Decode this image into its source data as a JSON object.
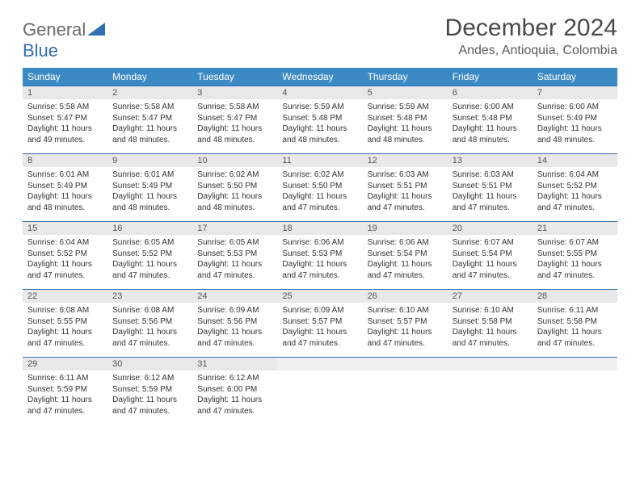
{
  "logo": {
    "word1": "General",
    "word2": "Blue"
  },
  "header": {
    "title": "December 2024",
    "location": "Andes, Antioquia, Colombia"
  },
  "colors": {
    "header_bg": "#3b8ac4",
    "header_text": "#ffffff",
    "row_border": "#2f6fb3",
    "daynum_bg": "#e8e8e8",
    "logo_gray": "#6a6a6a",
    "logo_blue": "#2f6fb3"
  },
  "daynames": [
    "Sunday",
    "Monday",
    "Tuesday",
    "Wednesday",
    "Thursday",
    "Friday",
    "Saturday"
  ],
  "weeks": [
    [
      {
        "n": "1",
        "sr": "5:58 AM",
        "ss": "5:47 PM",
        "dl": "11 hours and 49 minutes."
      },
      {
        "n": "2",
        "sr": "5:58 AM",
        "ss": "5:47 PM",
        "dl": "11 hours and 48 minutes."
      },
      {
        "n": "3",
        "sr": "5:58 AM",
        "ss": "5:47 PM",
        "dl": "11 hours and 48 minutes."
      },
      {
        "n": "4",
        "sr": "5:59 AM",
        "ss": "5:48 PM",
        "dl": "11 hours and 48 minutes."
      },
      {
        "n": "5",
        "sr": "5:59 AM",
        "ss": "5:48 PM",
        "dl": "11 hours and 48 minutes."
      },
      {
        "n": "6",
        "sr": "6:00 AM",
        "ss": "5:48 PM",
        "dl": "11 hours and 48 minutes."
      },
      {
        "n": "7",
        "sr": "6:00 AM",
        "ss": "5:49 PM",
        "dl": "11 hours and 48 minutes."
      }
    ],
    [
      {
        "n": "8",
        "sr": "6:01 AM",
        "ss": "5:49 PM",
        "dl": "11 hours and 48 minutes."
      },
      {
        "n": "9",
        "sr": "6:01 AM",
        "ss": "5:49 PM",
        "dl": "11 hours and 48 minutes."
      },
      {
        "n": "10",
        "sr": "6:02 AM",
        "ss": "5:50 PM",
        "dl": "11 hours and 48 minutes."
      },
      {
        "n": "11",
        "sr": "6:02 AM",
        "ss": "5:50 PM",
        "dl": "11 hours and 47 minutes."
      },
      {
        "n": "12",
        "sr": "6:03 AM",
        "ss": "5:51 PM",
        "dl": "11 hours and 47 minutes."
      },
      {
        "n": "13",
        "sr": "6:03 AM",
        "ss": "5:51 PM",
        "dl": "11 hours and 47 minutes."
      },
      {
        "n": "14",
        "sr": "6:04 AM",
        "ss": "5:52 PM",
        "dl": "11 hours and 47 minutes."
      }
    ],
    [
      {
        "n": "15",
        "sr": "6:04 AM",
        "ss": "5:52 PM",
        "dl": "11 hours and 47 minutes."
      },
      {
        "n": "16",
        "sr": "6:05 AM",
        "ss": "5:52 PM",
        "dl": "11 hours and 47 minutes."
      },
      {
        "n": "17",
        "sr": "6:05 AM",
        "ss": "5:53 PM",
        "dl": "11 hours and 47 minutes."
      },
      {
        "n": "18",
        "sr": "6:06 AM",
        "ss": "5:53 PM",
        "dl": "11 hours and 47 minutes."
      },
      {
        "n": "19",
        "sr": "6:06 AM",
        "ss": "5:54 PM",
        "dl": "11 hours and 47 minutes."
      },
      {
        "n": "20",
        "sr": "6:07 AM",
        "ss": "5:54 PM",
        "dl": "11 hours and 47 minutes."
      },
      {
        "n": "21",
        "sr": "6:07 AM",
        "ss": "5:55 PM",
        "dl": "11 hours and 47 minutes."
      }
    ],
    [
      {
        "n": "22",
        "sr": "6:08 AM",
        "ss": "5:55 PM",
        "dl": "11 hours and 47 minutes."
      },
      {
        "n": "23",
        "sr": "6:08 AM",
        "ss": "5:56 PM",
        "dl": "11 hours and 47 minutes."
      },
      {
        "n": "24",
        "sr": "6:09 AM",
        "ss": "5:56 PM",
        "dl": "11 hours and 47 minutes."
      },
      {
        "n": "25",
        "sr": "6:09 AM",
        "ss": "5:57 PM",
        "dl": "11 hours and 47 minutes."
      },
      {
        "n": "26",
        "sr": "6:10 AM",
        "ss": "5:57 PM",
        "dl": "11 hours and 47 minutes."
      },
      {
        "n": "27",
        "sr": "6:10 AM",
        "ss": "5:58 PM",
        "dl": "11 hours and 47 minutes."
      },
      {
        "n": "28",
        "sr": "6:11 AM",
        "ss": "5:58 PM",
        "dl": "11 hours and 47 minutes."
      }
    ],
    [
      {
        "n": "29",
        "sr": "6:11 AM",
        "ss": "5:59 PM",
        "dl": "11 hours and 47 minutes."
      },
      {
        "n": "30",
        "sr": "6:12 AM",
        "ss": "5:59 PM",
        "dl": "11 hours and 47 minutes."
      },
      {
        "n": "31",
        "sr": "6:12 AM",
        "ss": "6:00 PM",
        "dl": "11 hours and 47 minutes."
      },
      null,
      null,
      null,
      null
    ]
  ],
  "labels": {
    "sunrise": "Sunrise:",
    "sunset": "Sunset:",
    "daylight": "Daylight:"
  }
}
